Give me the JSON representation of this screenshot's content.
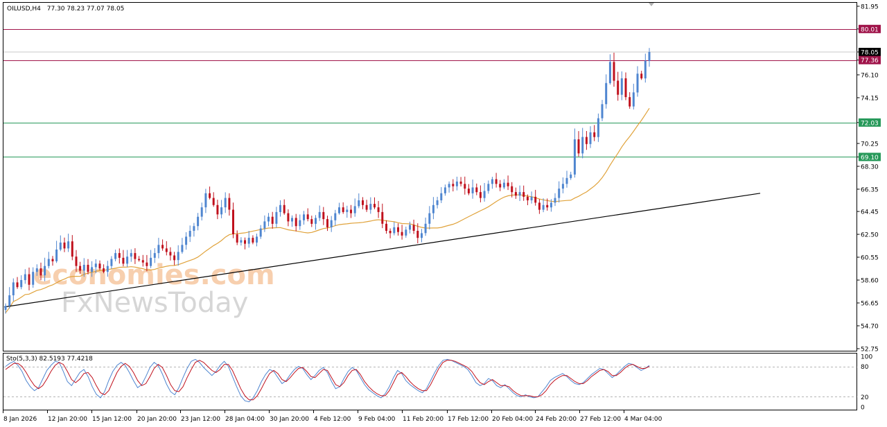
{
  "header": {
    "symbol": "OILUSD,H4",
    "ohlc": "77.30 78.23 77.07 78.05"
  },
  "watermark": {
    "line1": "economies.com",
    "line2": "FxNewsToday"
  },
  "stochastic": {
    "label": "Sto(5,3,3) 82.5193 77.4218",
    "levels": [
      "100",
      "80",
      "20",
      "0"
    ],
    "main_color": "#4f86d0",
    "signal_color": "#c0101c"
  },
  "chart_data": {
    "type": "candlestick",
    "title": "",
    "price_axis": {
      "ticks": [
        "81.95",
        "80.01",
        "78.05",
        "77.36",
        "76.10",
        "74.15",
        "72.03",
        "70.25",
        "69.10",
        "68.30",
        "66.35",
        "64.45",
        "62.50",
        "60.55",
        "58.60",
        "56.65",
        "54.70",
        "52.75"
      ],
      "current_price": "78.05"
    },
    "time_axis": {
      "labels": [
        "8 Jan 2026",
        "12 Jan 20:00",
        "15 Jan 12:00",
        "20 Jan 20:00",
        "23 Jan 12:00",
        "28 Jan 04:00",
        "30 Jan 20:00",
        "4 Feb 12:00",
        "9 Feb 04:00",
        "11 Feb 20:00",
        "17 Feb 12:00",
        "20 Feb 04:00",
        "24 Feb 20:00",
        "27 Feb 12:00",
        "4 Mar 04:00"
      ]
    },
    "levels": [
      {
        "name": "resistance",
        "price": 80.01,
        "label": "80.01",
        "color": "#a0144a"
      },
      {
        "name": "resistance",
        "price": 77.36,
        "label": "77.36",
        "color": "#a0144a"
      },
      {
        "name": "support",
        "price": 72.03,
        "label": "72.03",
        "color": "#27995a"
      },
      {
        "name": "support",
        "price": 69.1,
        "label": "69.10",
        "color": "#27995a"
      }
    ],
    "trendline": {
      "start_price": 56.3,
      "end_price": 66.0,
      "color": "#000000"
    },
    "moving_average_color": "#e0a23a",
    "up_color": "#4f86d0",
    "down_color": "#c0101c",
    "closes": [
      56.4,
      57.3,
      58.4,
      58.0,
      58.6,
      59.1,
      58.2,
      59.3,
      59.6,
      59.0,
      59.8,
      60.4,
      60.2,
      61.2,
      61.8,
      61.3,
      61.9,
      60.6,
      59.8,
      59.4,
      59.9,
      59.3,
      59.7,
      60.0,
      59.6,
      59.3,
      59.8,
      60.4,
      60.9,
      60.5,
      60.0,
      60.6,
      60.9,
      60.4,
      60.3,
      60.1,
      59.8,
      60.5,
      60.9,
      61.6,
      61.3,
      61.0,
      60.7,
      60.3,
      61.0,
      61.6,
      62.3,
      62.8,
      63.2,
      64.0,
      64.8,
      66.0,
      65.6,
      65.0,
      64.2,
      64.8,
      65.6,
      64.6,
      62.5,
      61.8,
      62.0,
      61.7,
      62.2,
      61.8,
      62.3,
      63.0,
      63.6,
      64.0,
      63.4,
      64.4,
      65.0,
      64.3,
      63.6,
      63.9,
      63.2,
      63.7,
      64.2,
      63.8,
      63.4,
      63.9,
      64.4,
      63.8,
      63.1,
      63.7,
      64.3,
      64.8,
      64.4,
      64.6,
      64.3,
      64.9,
      65.4,
      65.0,
      64.6,
      65.1,
      64.8,
      64.4,
      63.4,
      62.8,
      62.6,
      63.1,
      62.7,
      62.4,
      62.9,
      63.3,
      62.8,
      62.2,
      62.6,
      63.4,
      64.3,
      65.0,
      65.4,
      66.0,
      66.5,
      66.8,
      66.6,
      67.0,
      66.8,
      66.4,
      66.0,
      66.5,
      66.1,
      65.6,
      66.2,
      66.8,
      67.2,
      66.8,
      66.5,
      66.9,
      66.6,
      66.1,
      65.8,
      66.1,
      65.7,
      65.4,
      65.7,
      65.2,
      64.6,
      65.0,
      64.8,
      65.2,
      65.6,
      66.4,
      66.8,
      67.3,
      67.6,
      70.6,
      69.4,
      70.8,
      70.2,
      71.2,
      70.8,
      72.4,
      73.6,
      75.4,
      77.2,
      75.6,
      74.4,
      75.8,
      74.2,
      73.4,
      74.6,
      76.2,
      75.8,
      77.3,
      78.05
    ],
    "stoch_main": [
      80,
      86,
      90,
      82,
      70,
      52,
      40,
      32,
      38,
      55,
      72,
      82,
      90,
      88,
      70,
      50,
      42,
      55,
      68,
      74,
      60,
      40,
      25,
      18,
      30,
      52,
      70,
      82,
      88,
      82,
      68,
      52,
      38,
      44,
      60,
      78,
      88,
      82,
      65,
      45,
      30,
      24,
      38,
      58,
      76,
      90,
      94,
      88,
      78,
      70,
      62,
      70,
      82,
      90,
      80,
      60,
      40,
      22,
      12,
      10,
      18,
      32,
      50,
      64,
      74,
      70,
      58,
      46,
      52,
      64,
      74,
      80,
      76,
      64,
      54,
      62,
      72,
      78,
      68,
      50,
      36,
      40,
      56,
      70,
      78,
      72,
      58,
      44,
      34,
      28,
      22,
      18,
      26,
      40,
      58,
      72,
      66,
      52,
      44,
      38,
      32,
      28,
      36,
      52,
      68,
      82,
      92,
      94,
      92,
      88,
      84,
      80,
      74,
      62,
      48,
      42,
      46,
      56,
      52,
      42,
      38,
      44,
      36,
      28,
      22,
      20,
      24,
      20,
      18,
      20,
      30,
      40,
      52,
      58,
      62,
      66,
      60,
      52,
      46,
      44,
      48,
      56,
      64,
      70,
      76,
      74,
      66,
      58,
      64,
      72,
      80,
      86,
      84,
      78,
      72,
      76,
      82
    ],
    "stoch_signal": [
      74,
      80,
      86,
      86,
      80,
      68,
      54,
      42,
      36,
      42,
      55,
      70,
      82,
      88,
      84,
      70,
      54,
      48,
      55,
      66,
      68,
      58,
      42,
      28,
      24,
      32,
      50,
      68,
      80,
      86,
      80,
      68,
      52,
      42,
      46,
      60,
      76,
      84,
      78,
      62,
      44,
      32,
      30,
      40,
      58,
      74,
      88,
      92,
      88,
      80,
      72,
      68,
      74,
      84,
      84,
      72,
      54,
      36,
      22,
      14,
      14,
      22,
      36,
      52,
      66,
      72,
      66,
      54,
      50,
      58,
      68,
      76,
      78,
      70,
      60,
      58,
      66,
      74,
      72,
      58,
      44,
      40,
      48,
      62,
      72,
      74,
      64,
      50,
      40,
      32,
      26,
      22,
      22,
      32,
      48,
      64,
      68,
      60,
      50,
      42,
      36,
      32,
      32,
      44,
      60,
      76,
      88,
      92,
      92,
      90,
      86,
      82,
      78,
      70,
      58,
      48,
      44,
      50,
      54,
      48,
      42,
      42,
      40,
      32,
      26,
      22,
      22,
      22,
      20,
      20,
      24,
      32,
      44,
      52,
      58,
      62,
      62,
      56,
      50,
      46,
      46,
      52,
      60,
      66,
      72,
      74,
      70,
      62,
      62,
      68,
      76,
      82,
      84,
      80,
      76,
      76,
      80
    ]
  }
}
